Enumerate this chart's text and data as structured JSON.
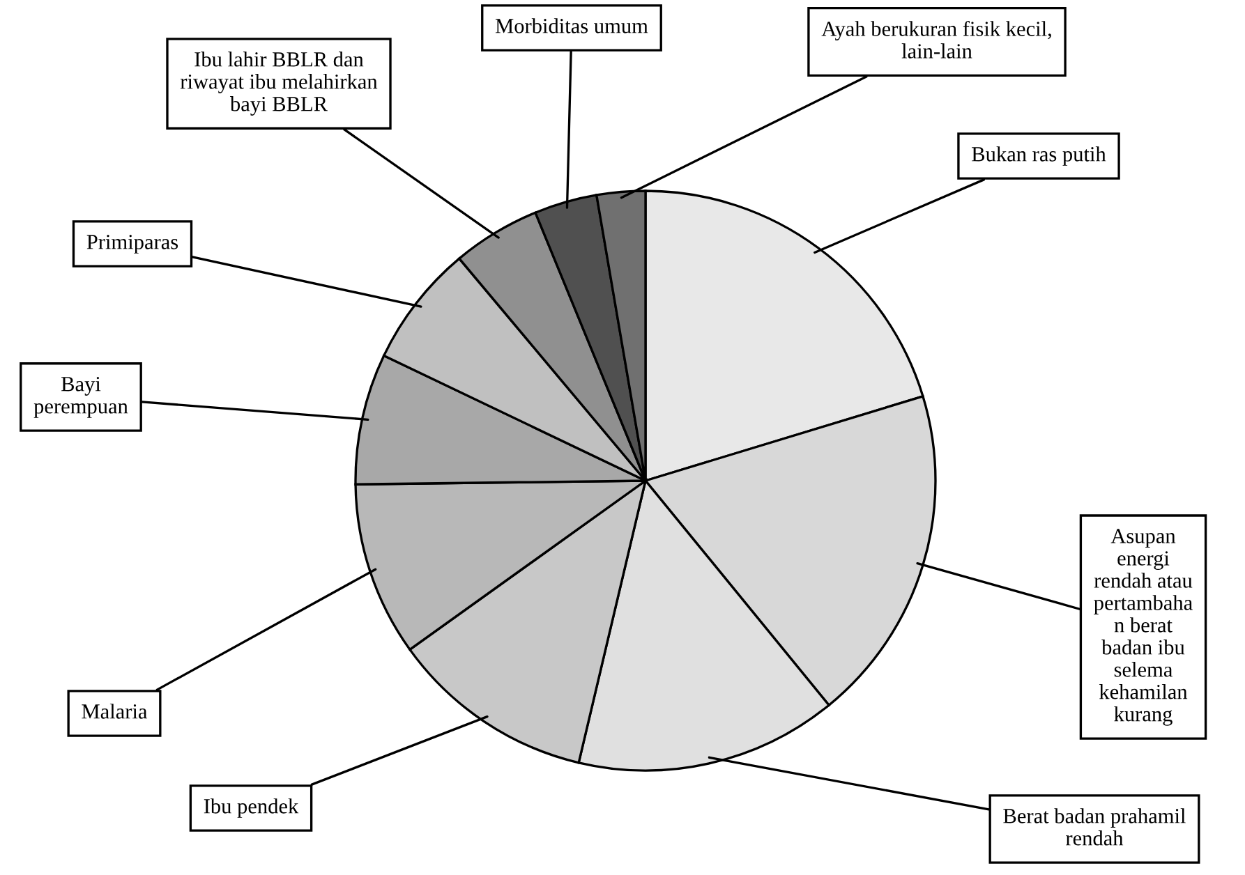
{
  "chart_data": {
    "type": "pie",
    "categories": [
      "Bukan ras putih",
      "Asupan\nenergi\nrendah atau\npertambaha\nn berat\nbadan ibu\nselema\nkehamilan\nkurang",
      "Berat badan prahamil\nrendah",
      "Ibu pendek",
      "Malaria",
      "Bayi\nperempuan",
      "Primiparas",
      "Ibu lahir BBLR dan\nriwayat ibu melahirkan\nbayi BBLR",
      "Morbiditas umum",
      "Ayah berukuran fisik kecil,\nlain-lain"
    ],
    "values": [
      20.3,
      18.8,
      14.6,
      11.4,
      9.7,
      7.3,
      6.8,
      4.9,
      3.5,
      2.7
    ],
    "colors": [
      "#e8e8e8",
      "#d8d8d8",
      "#e0e0e0",
      "#c8c8c8",
      "#b8b8b8",
      "#a8a8a8",
      "#c0c0c0",
      "#909090",
      "#505050",
      "#707070"
    ]
  }
}
